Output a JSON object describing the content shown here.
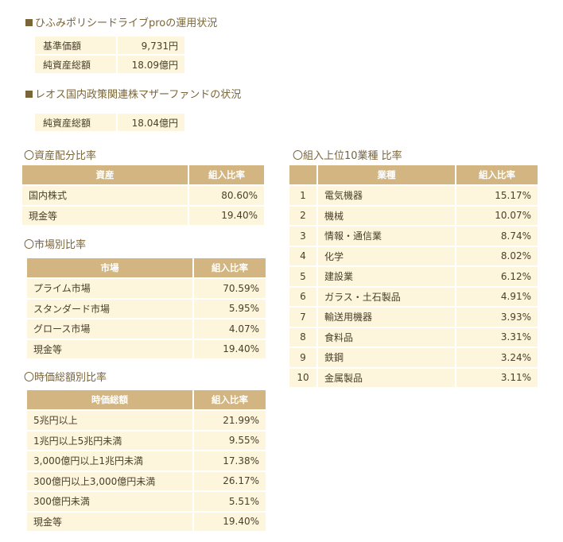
{
  "fund": {
    "heading": "ひふみポリシードライブproの運用状況",
    "rows": [
      {
        "label": "基準価額",
        "value": "9,731円"
      },
      {
        "label": "純資産総額",
        "value": "18.09億円"
      }
    ]
  },
  "mother": {
    "heading": "レオス国内政策関連株マザーファンドの状況",
    "rows": [
      {
        "label": "純資産総額",
        "value": "18.04億円"
      }
    ]
  },
  "asset": {
    "title": "〇資産配分比率",
    "col1": "資産",
    "col2": "組入比率",
    "rows": [
      {
        "name": "国内株式",
        "value": "80.60%"
      },
      {
        "name": "現金等",
        "value": "19.40%"
      }
    ]
  },
  "market": {
    "title": "〇市場別比率",
    "col1": "市場",
    "col2": "組入比率",
    "rows": [
      {
        "name": "プライム市場",
        "value": "70.59%"
      },
      {
        "name": "スタンダード市場",
        "value": "5.95%"
      },
      {
        "name": "グロース市場",
        "value": "4.07%"
      },
      {
        "name": "現金等",
        "value": "19.40%"
      }
    ]
  },
  "cap": {
    "title": "〇時価総額別比率",
    "col1": "時価総額",
    "col2": "組入比率",
    "rows": [
      {
        "name": "5兆円以上",
        "value": "21.99%"
      },
      {
        "name": "1兆円以上5兆円未満",
        "value": "9.55%"
      },
      {
        "name": "3,000億円以上1兆円未満",
        "value": "17.38%"
      },
      {
        "name": "300億円以上3,000億円未満",
        "value": "26.17%"
      },
      {
        "name": "300億円未満",
        "value": "5.51%"
      },
      {
        "name": "現金等",
        "value": "19.40%"
      }
    ]
  },
  "industry": {
    "title": "〇組入上位10業種 比率",
    "col1": "業種",
    "col2": "組入比率",
    "rows": [
      {
        "rank": "1",
        "name": "電気機器",
        "value": "15.17%"
      },
      {
        "rank": "2",
        "name": "機械",
        "value": "10.07%"
      },
      {
        "rank": "3",
        "name": "情報・通信業",
        "value": "8.74%"
      },
      {
        "rank": "4",
        "name": "化学",
        "value": "8.02%"
      },
      {
        "rank": "5",
        "name": "建設業",
        "value": "6.12%"
      },
      {
        "rank": "6",
        "name": "ガラス・土石製品",
        "value": "4.91%"
      },
      {
        "rank": "7",
        "name": "輸送用機器",
        "value": "3.93%"
      },
      {
        "rank": "8",
        "name": "食料品",
        "value": "3.31%"
      },
      {
        "rank": "9",
        "name": "鉄鋼",
        "value": "3.24%"
      },
      {
        "rank": "10",
        "name": "金属製品",
        "value": "3.11%"
      }
    ]
  }
}
